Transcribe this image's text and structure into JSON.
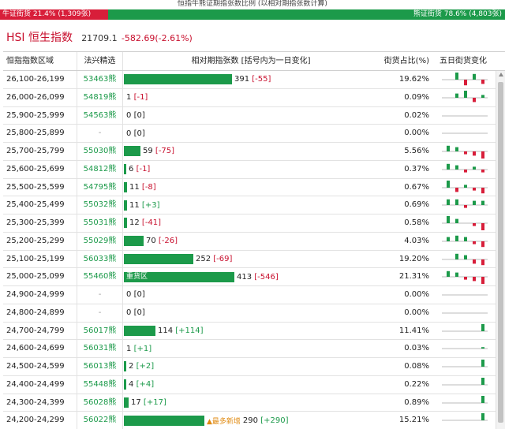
{
  "ratio": {
    "title": "恒指牛熊证期指张数比例 (以相对期指张数计算)",
    "bull_label": "牛证街货 21.4% (1,309张)",
    "bear_label": "熊证街货 78.6% (4,803张)",
    "bull_share": 0.214
  },
  "index": {
    "name": "HSI 恒生指数",
    "price": "21709.1",
    "change": "-582.69(-2.61%)"
  },
  "table": {
    "headers": {
      "range": "恒指指数区域",
      "warrant": "法兴精选",
      "relative": "相对期指张数 [括号内为一日变化]",
      "pct": "街货占比(%)",
      "trend": "五日街货变化"
    },
    "rows": [
      {
        "range": "26,100-26,199",
        "warrant": "53463熊",
        "contracts": 391,
        "value": "391",
        "change": "[-55]",
        "pct": "19.62%",
        "trend": [
          0,
          5,
          -4,
          4,
          -3
        ]
      },
      {
        "range": "26,000-26,099",
        "warrant": "54819熊",
        "contracts": 1,
        "value": "1",
        "change": "[-1]",
        "pct": "0.09%",
        "trend": [
          0,
          3,
          5,
          -3,
          2
        ]
      },
      {
        "range": "25,900-25,999",
        "warrant": "54563熊",
        "contracts": 0,
        "value": "0",
        "change": "[0]",
        "pct": "0.02%",
        "trend": [
          0,
          0,
          0,
          0,
          0
        ]
      },
      {
        "range": "25,800-25,899",
        "warrant": "-",
        "contracts": 0,
        "value": "0",
        "change": "[0]",
        "pct": "0.00%",
        "trend": [
          0,
          0,
          0,
          0,
          0
        ]
      },
      {
        "range": "25,700-25,799",
        "warrant": "55030熊",
        "contracts": 59,
        "value": "59",
        "change": "[-75]",
        "pct": "5.56%",
        "trend": [
          4,
          3,
          -2,
          -3,
          -5
        ]
      },
      {
        "range": "25,600-25,699",
        "warrant": "54812熊",
        "contracts": 6,
        "value": "6",
        "change": "[-1]",
        "pct": "0.37%",
        "trend": [
          4,
          3,
          -2,
          2,
          -2
        ]
      },
      {
        "range": "25,500-25,599",
        "warrant": "54795熊",
        "contracts": 11,
        "value": "11",
        "change": "[-8]",
        "pct": "0.67%",
        "trend": [
          5,
          -3,
          2,
          -2,
          -4
        ]
      },
      {
        "range": "25,400-25,499",
        "warrant": "55032熊",
        "contracts": 11,
        "value": "11",
        "change": "[+3]",
        "pct": "0.69%",
        "trend": [
          4,
          4,
          -2,
          3,
          3
        ]
      },
      {
        "range": "25,300-25,399",
        "warrant": "55031熊",
        "contracts": 12,
        "value": "12",
        "change": "[-41]",
        "pct": "0.58%",
        "trend": [
          5,
          3,
          0,
          -2,
          -5
        ]
      },
      {
        "range": "25,200-25,299",
        "warrant": "55029熊",
        "contracts": 70,
        "value": "70",
        "change": "[-26]",
        "pct": "4.03%",
        "trend": [
          3,
          4,
          3,
          -2,
          -4
        ]
      },
      {
        "range": "25,100-25,199",
        "warrant": "56033熊",
        "contracts": 252,
        "value": "252",
        "change": "[-69]",
        "pct": "19.20%",
        "trend": [
          0,
          4,
          3,
          -3,
          -4
        ]
      },
      {
        "range": "25,000-25,099",
        "warrant": "55460熊",
        "contracts": 413,
        "value": "413",
        "change": "[-546]",
        "pct": "21.31%",
        "trend": [
          4,
          3,
          -2,
          -3,
          -5
        ],
        "bar_label": "重货区"
      },
      {
        "range": "24,900-24,999",
        "warrant": "-",
        "contracts": 0,
        "value": "0",
        "change": "[0]",
        "pct": "0.00%",
        "trend": [
          0,
          0,
          0,
          0,
          0
        ]
      },
      {
        "range": "24,800-24,899",
        "warrant": "-",
        "contracts": 0,
        "value": "0",
        "change": "[0]",
        "pct": "0.00%",
        "trend": [
          0,
          0,
          0,
          0,
          0
        ]
      },
      {
        "range": "24,700-24,799",
        "warrant": "56017熊",
        "contracts": 114,
        "value": "114",
        "change": "[+114]",
        "pct": "11.41%",
        "trend": [
          0,
          0,
          0,
          0,
          5
        ]
      },
      {
        "range": "24,600-24,699",
        "warrant": "56031熊",
        "contracts": 1,
        "value": "1",
        "change": "[+1]",
        "pct": "0.03%",
        "trend": [
          0,
          0,
          0,
          0,
          1
        ]
      },
      {
        "range": "24,500-24,599",
        "warrant": "56013熊",
        "contracts": 2,
        "value": "2",
        "change": "[+2]",
        "pct": "0.08%",
        "trend": [
          0,
          0,
          0,
          0,
          5
        ]
      },
      {
        "range": "24,400-24,499",
        "warrant": "55448熊",
        "contracts": 4,
        "value": "4",
        "change": "[+4]",
        "pct": "0.22%",
        "trend": [
          0,
          0,
          0,
          0,
          5
        ]
      },
      {
        "range": "24,300-24,399",
        "warrant": "56028熊",
        "contracts": 17,
        "value": "17",
        "change": "[+17]",
        "pct": "0.89%",
        "trend": [
          0,
          0,
          0,
          0,
          5
        ]
      },
      {
        "range": "24,200-24,299",
        "warrant": "56022熊",
        "contracts": 290,
        "value": "290",
        "change": "[+290]",
        "pct": "15.21%",
        "trend": [
          0,
          0,
          0,
          0,
          5
        ],
        "tag": "▲最多新增"
      }
    ]
  },
  "colors": {
    "bull": "#d81e3a",
    "bear": "#1c9a4a",
    "negative_change": "#c8102e",
    "positive_change": "#1c9a4a",
    "tag": "#e08a10"
  }
}
